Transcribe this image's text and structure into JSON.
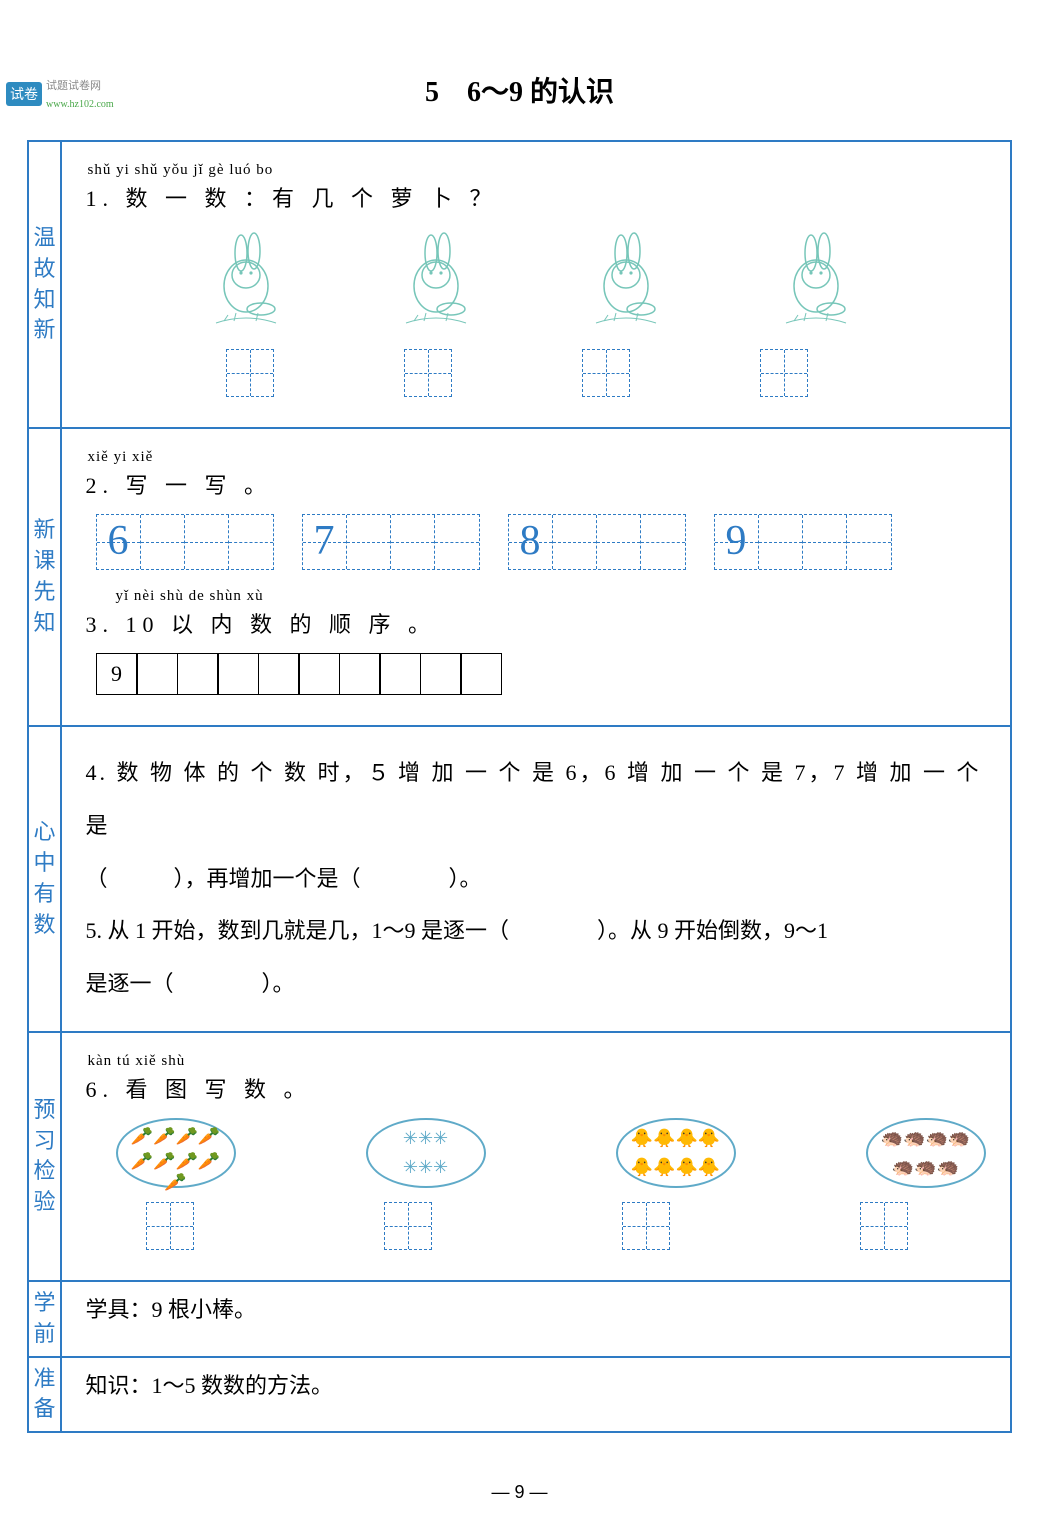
{
  "logo": {
    "badge": "试卷",
    "text": "试题试卷网",
    "url": "www.hz102.com"
  },
  "title": "5　6～9 的认识",
  "sections": [
    {
      "label": "温故知新"
    },
    {
      "label": "新课先知"
    },
    {
      "label": "心中有数"
    },
    {
      "label": "预习检验"
    },
    {
      "label": "学前"
    },
    {
      "label": "准备"
    }
  ],
  "q1": {
    "pinyin": "shǔ yi shǔ  yǒu jǐ  gè luó bo",
    "text": "1. 数 一 数 ：有 几 个 萝 卜 ？",
    "rabbit_count": 4,
    "box_count": 4,
    "rabbit_color": "#77c6b9",
    "box_color": "#2e7bc4"
  },
  "q2": {
    "pinyin": "xiě yi xiě",
    "text": "2. 写 一 写 。",
    "digits": [
      "6",
      "7",
      "8",
      "9"
    ],
    "cells_per_track": 4,
    "digit_color": "#2e7bc4"
  },
  "q3": {
    "pinyin": "yǐ nèi shù de shùn xù",
    "text": "3. 10 以 内 数 的 顺 序 。",
    "first_value": "9",
    "cell_count": 10
  },
  "q4": {
    "line1_a": "4. 数 物 体 的 个 数 时，",
    "line1_b": " 增 加 一 个 是 6，6 增 加 一 个 是 7，7 增 加 一 个 是",
    "five": "５",
    "line2": "（　　　），再增加一个是（　　　　）。"
  },
  "q5": {
    "line1": "5. 从 1 开始，数到几就是几，1～9 是逐一（　　　　）。从 9 开始倒数，9～1",
    "line2": "是逐一（　　　　）。"
  },
  "q6": {
    "pinyin": "kàn tú xiě shù",
    "text": "6. 看 图 写 数 。",
    "plates": [
      {
        "symbol": "🥕",
        "rows": [
          4,
          5
        ]
      },
      {
        "symbol": "✳",
        "rows": [
          3,
          3
        ]
      },
      {
        "symbol": "🐥",
        "rows": [
          4,
          4
        ]
      },
      {
        "symbol": "🦔",
        "rows": [
          4,
          3
        ]
      }
    ],
    "box_count": 4
  },
  "prep": {
    "tools": "学具：9 根小棒。",
    "knowledge": "知识：1～5 数数的方法。"
  },
  "page_number": "—  9  —",
  "colors": {
    "border": "#2e7bc4",
    "side_text": "#2e7bc4"
  }
}
